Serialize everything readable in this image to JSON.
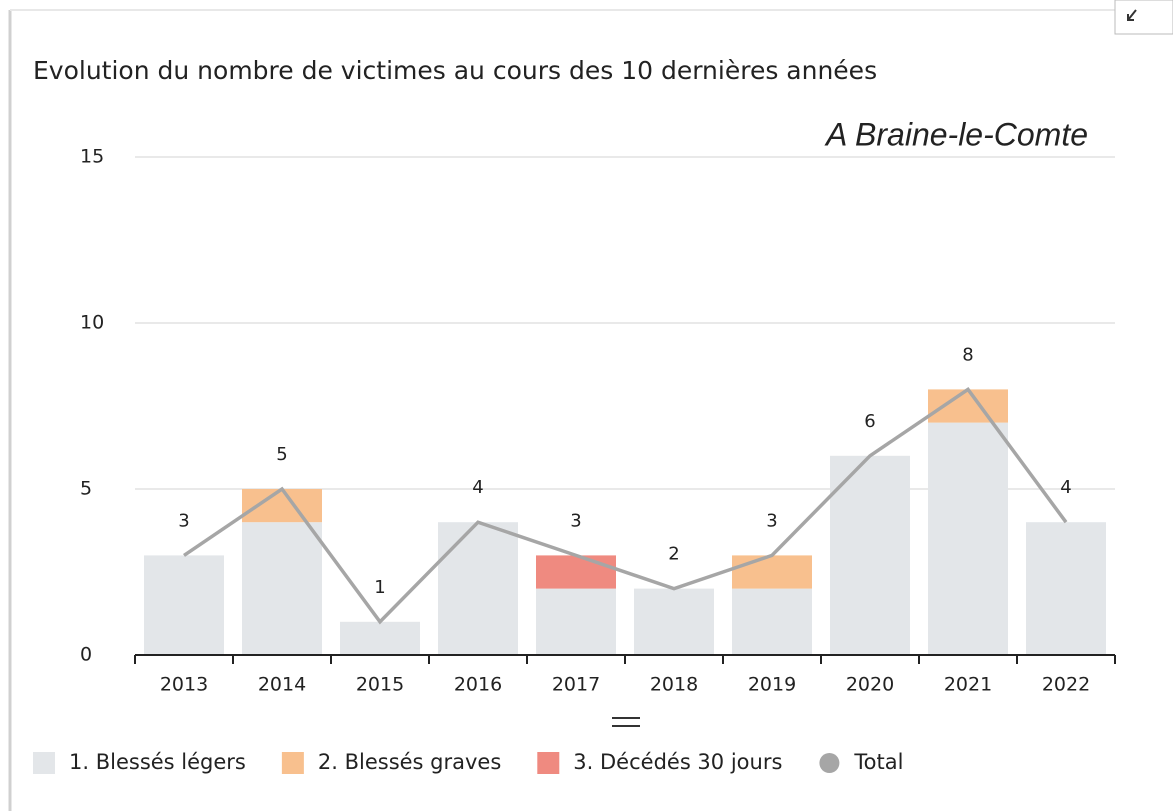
{
  "chart_data": {
    "type": "stacked-bar-line",
    "title": "Evolution du nombre de victimes au cours des 10 dernières années",
    "subtitle": "A Braine-le-Comte",
    "categories": [
      "2013",
      "2014",
      "2015",
      "2016",
      "2017",
      "2018",
      "2019",
      "2020",
      "2021",
      "2022"
    ],
    "series": [
      {
        "name": "1. Blessés légers",
        "color": "#e3e6e9",
        "kind": "bar",
        "values": [
          3,
          4,
          1,
          4,
          2,
          2,
          2,
          6,
          7,
          4
        ]
      },
      {
        "name": "2. Blessés graves",
        "color": "#f8c08e",
        "kind": "bar",
        "values": [
          0,
          1,
          0,
          0,
          0,
          0,
          1,
          0,
          1,
          0
        ]
      },
      {
        "name": "3. Décédés 30 jours",
        "color": "#ef8a80",
        "kind": "bar",
        "values": [
          0,
          0,
          0,
          0,
          1,
          0,
          0,
          0,
          0,
          0
        ]
      },
      {
        "name": "Total",
        "color": "#a6a6a6",
        "kind": "line",
        "values": [
          3,
          5,
          1,
          4,
          3,
          2,
          3,
          6,
          8,
          4
        ]
      }
    ],
    "ylim": [
      0,
      15
    ],
    "yticks": [
      0,
      5,
      10,
      15
    ],
    "grid": true,
    "legend": "bottom"
  }
}
